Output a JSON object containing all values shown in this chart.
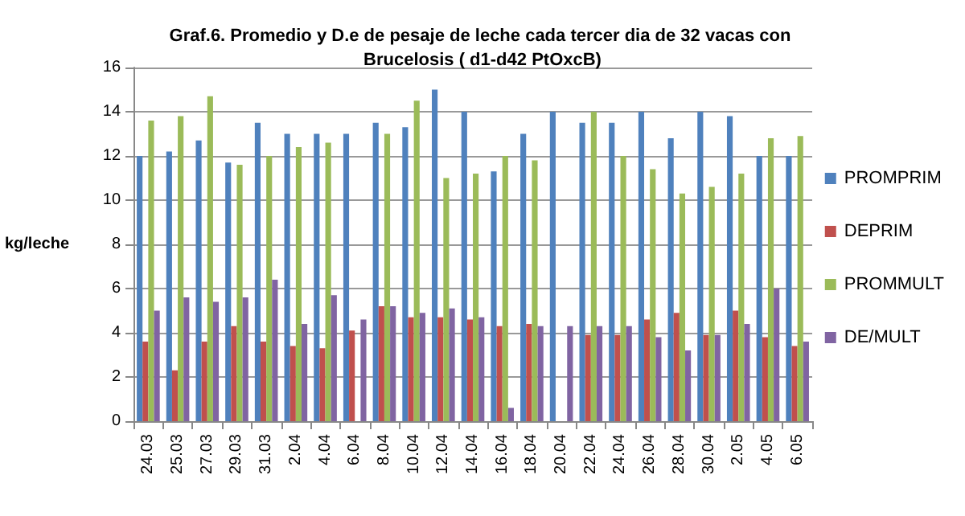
{
  "chart_data": {
    "type": "bar",
    "title": "Graf.6. Promedio y D.e de pesaje de leche cada tercer dia de 32 vacas con Brucelosis ( d1-d42 PtOxcB)",
    "ylabel": "kg/leche",
    "categories": [
      "24.03",
      "25.03",
      "27.03",
      "29.03",
      "31.03",
      "2.04",
      "4.04",
      "6.04",
      "8.04",
      "10.04",
      "12.04",
      "14.04",
      "16.04",
      "18.04",
      "20.04",
      "22.04",
      "24.04",
      "26.04",
      "28.04",
      "30.04",
      "2.05",
      "4.05",
      "6.05"
    ],
    "series": [
      {
        "name": "PROMPRIM",
        "color": "#4f81bd",
        "values": [
          12.0,
          12.2,
          12.7,
          11.7,
          13.5,
          13.0,
          13.0,
          13.0,
          13.5,
          13.3,
          15.0,
          14.0,
          11.3,
          13.0,
          14.0,
          13.5,
          13.5,
          14.0,
          12.8,
          14.0,
          13.8,
          12.0,
          12.0
        ]
      },
      {
        "name": "DEPRIM",
        "color": "#c0504d",
        "values": [
          3.6,
          2.3,
          3.6,
          4.3,
          3.6,
          3.4,
          3.3,
          4.1,
          5.2,
          4.7,
          4.7,
          4.6,
          4.3,
          4.4,
          null,
          3.9,
          3.9,
          4.6,
          4.9,
          3.9,
          5.0,
          3.8,
          3.4
        ]
      },
      {
        "name": "PROMMULT",
        "color": "#9bbb59",
        "values": [
          13.6,
          13.8,
          14.7,
          11.6,
          12.0,
          12.4,
          12.6,
          null,
          13.0,
          14.5,
          11.0,
          11.2,
          12.0,
          11.8,
          null,
          14.0,
          12.0,
          11.4,
          10.3,
          10.6,
          11.2,
          12.8,
          12.9
        ]
      },
      {
        "name": "DE/MULT",
        "color": "#8064a2",
        "values": [
          5.0,
          5.6,
          5.4,
          5.6,
          6.4,
          4.4,
          5.7,
          4.6,
          5.2,
          4.9,
          5.1,
          4.7,
          0.6,
          4.3,
          4.3,
          4.3,
          4.3,
          3.8,
          3.2,
          3.9,
          4.4,
          6.0,
          3.6
        ]
      }
    ],
    "ylim": [
      0,
      16
    ],
    "yticks": [
      0,
      2,
      4,
      6,
      8,
      10,
      12,
      14,
      16
    ],
    "grid": "y",
    "legend": "right"
  }
}
